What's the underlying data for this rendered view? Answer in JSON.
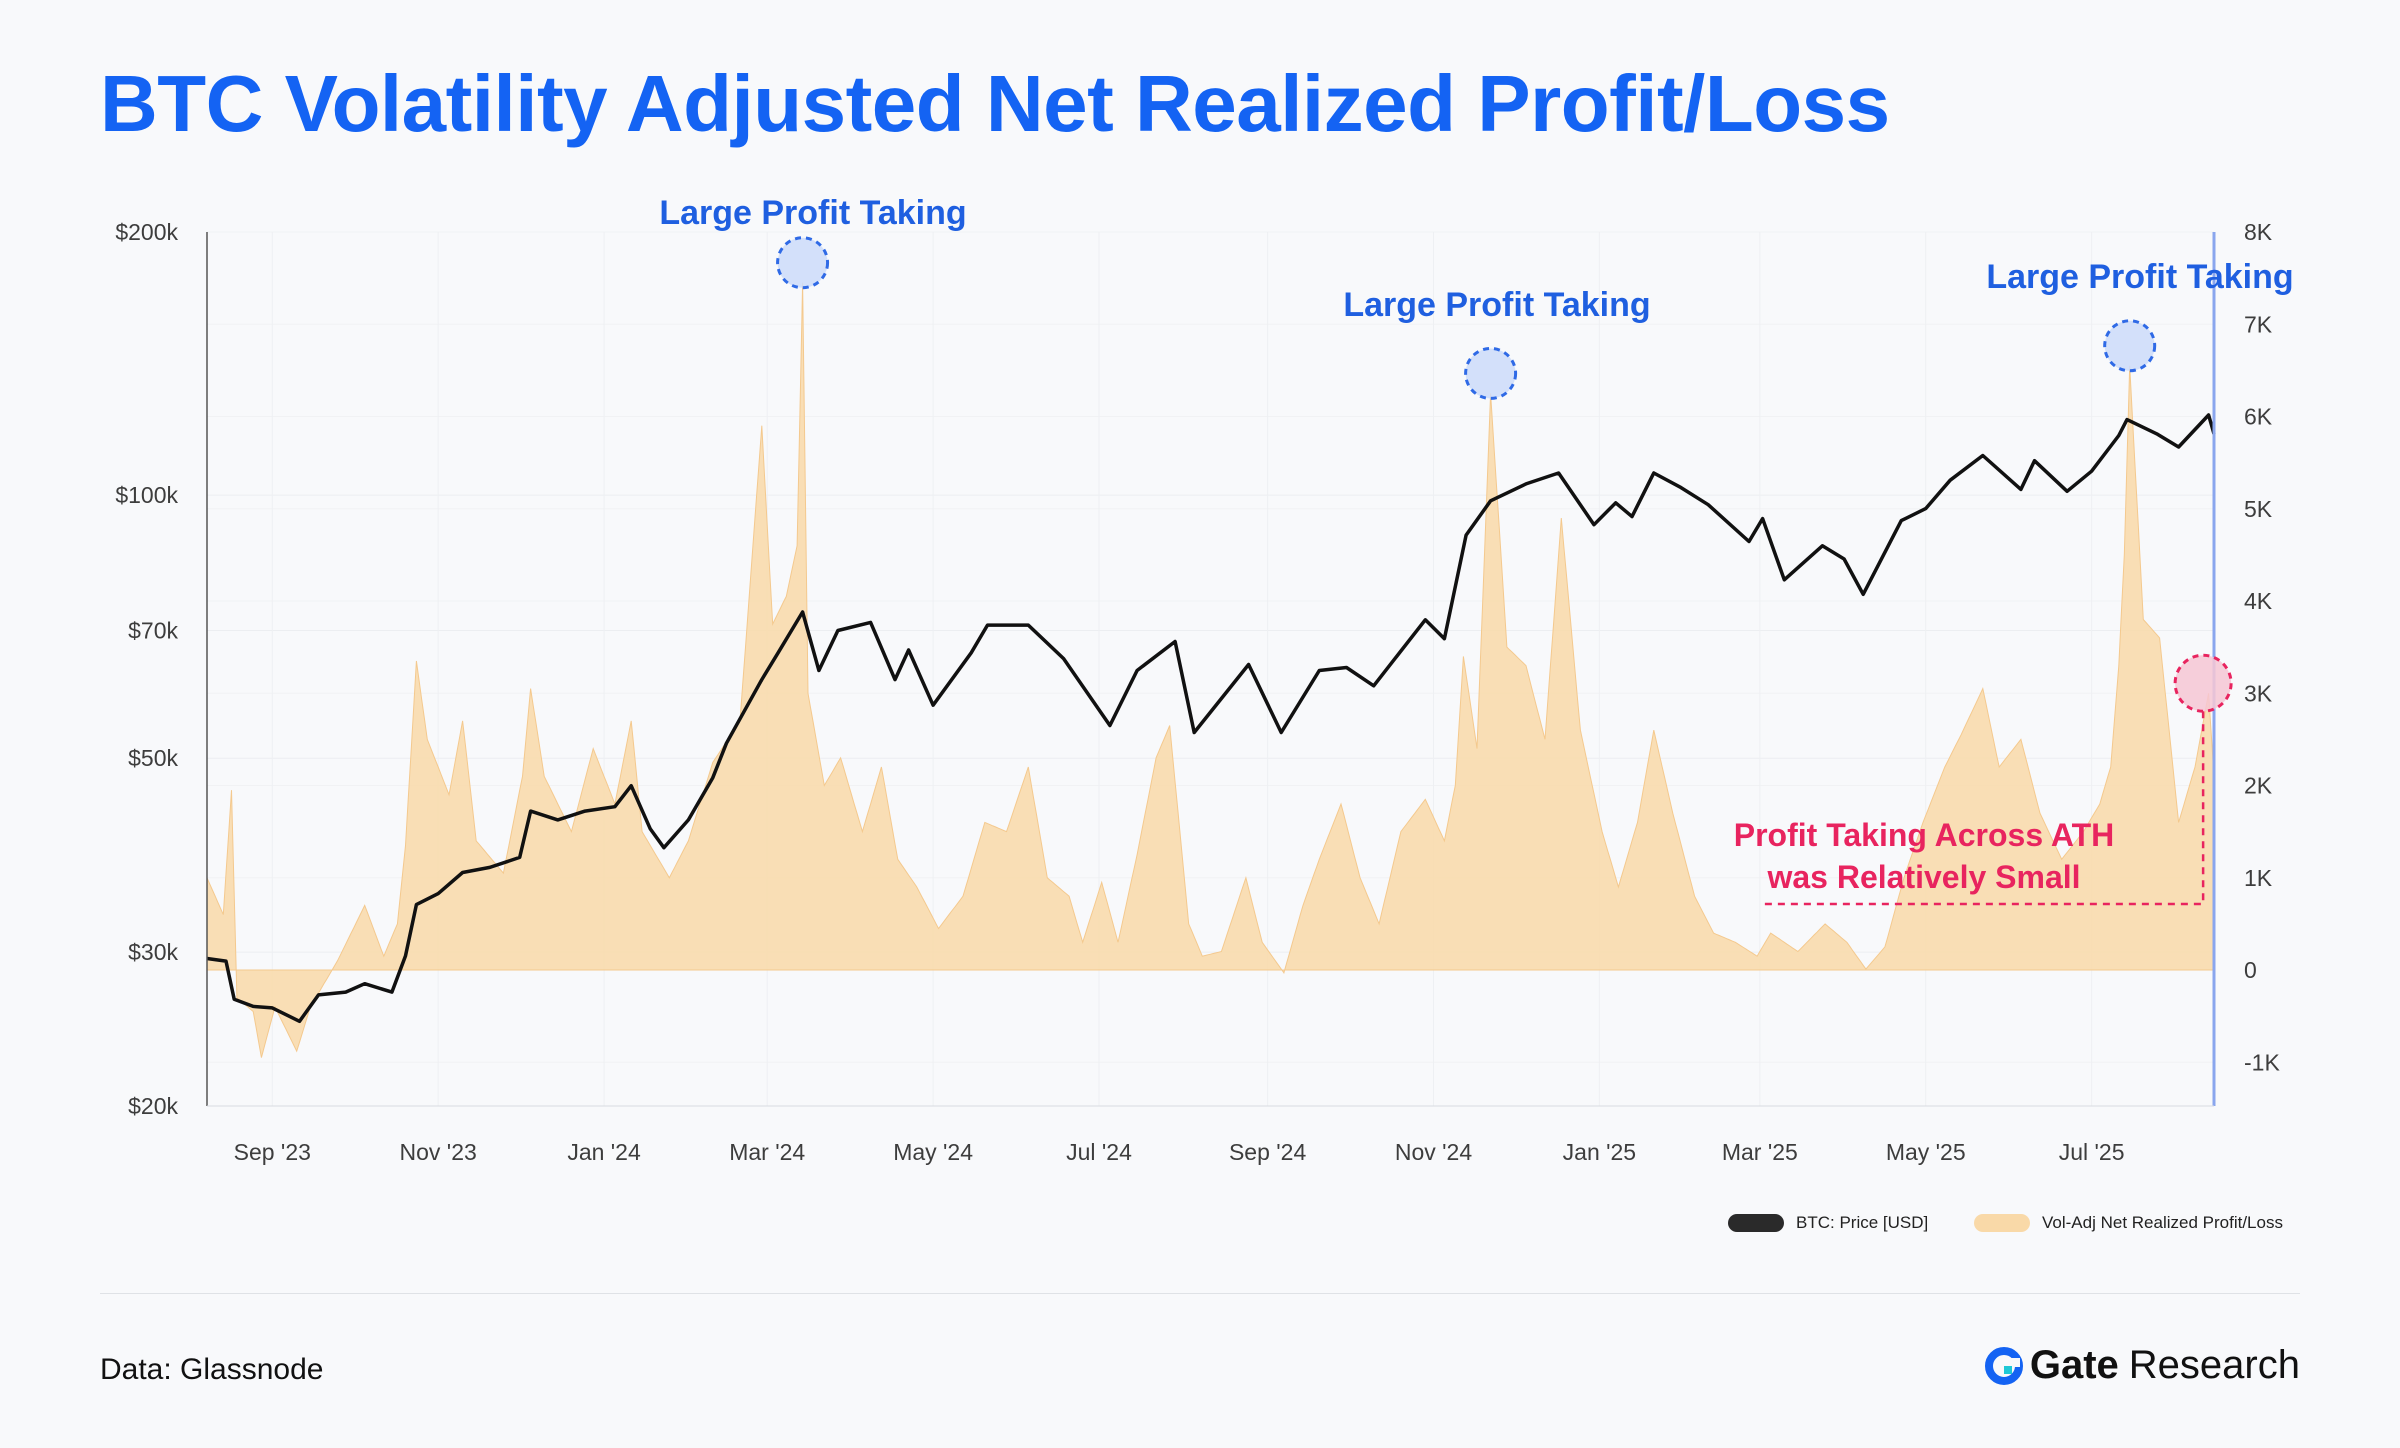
{
  "title": "BTC Volatility Adjusted Net Realized Profit/Loss",
  "source": "Data: Glassnode",
  "brand": {
    "name_bold": "Gate",
    "name_light": "Research"
  },
  "colors": {
    "title": "#1463f3",
    "price_line": "#111111",
    "pnl_fill": "#f9d9a8",
    "annotation_blue": "#1f5fe0",
    "annotation_pink": "#e8245f",
    "right_axis_line": "#8aa6ee"
  },
  "legend": {
    "price_label": "BTC: Price [USD]",
    "pnl_label": "Vol-Adj Net Realized Profit/Loss"
  },
  "annotations": {
    "peak_label": "Large Profit Taking",
    "ath_line1": "Profit Taking Across ATH",
    "ath_line2": "was Relatively Small"
  },
  "chart_data": {
    "type": "line",
    "x_type": "date",
    "xlim": [
      "2023-08-08",
      "2025-08-15"
    ],
    "x_ticks": [
      {
        "date": "2023-09-01",
        "label": "Sep '23"
      },
      {
        "date": "2023-11-01",
        "label": "Nov '23"
      },
      {
        "date": "2024-01-01",
        "label": "Jan '24"
      },
      {
        "date": "2024-03-01",
        "label": "Mar '24"
      },
      {
        "date": "2024-05-01",
        "label": "May '24"
      },
      {
        "date": "2024-07-01",
        "label": "Jul '24"
      },
      {
        "date": "2024-09-01",
        "label": "Sep '24"
      },
      {
        "date": "2024-11-01",
        "label": "Nov '24"
      },
      {
        "date": "2025-01-01",
        "label": "Jan '25"
      },
      {
        "date": "2025-03-01",
        "label": "Mar '25"
      },
      {
        "date": "2025-05-01",
        "label": "May '25"
      },
      {
        "date": "2025-07-01",
        "label": "Jul '25"
      }
    ],
    "y_left": {
      "scale": "log",
      "lim": [
        20000,
        200000
      ],
      "ticks": [
        {
          "value": 200000,
          "label": "$200k"
        },
        {
          "value": 100000,
          "label": "$100k"
        },
        {
          "value": 70000,
          "label": "$70k"
        },
        {
          "value": 50000,
          "label": "$50k"
        },
        {
          "value": 30000,
          "label": "$30k"
        },
        {
          "value": 20000,
          "label": "$20k"
        }
      ]
    },
    "y_right": {
      "scale": "linear",
      "lim": [
        -1500,
        8000
      ],
      "ticks": [
        {
          "value": 8000,
          "label": "8K"
        },
        {
          "value": 7000,
          "label": "7K"
        },
        {
          "value": 6000,
          "label": "6K"
        },
        {
          "value": 5000,
          "label": "5K"
        },
        {
          "value": 4000,
          "label": "4K"
        },
        {
          "value": 3000,
          "label": "3K"
        },
        {
          "value": 2000,
          "label": "2K"
        },
        {
          "value": 1000,
          "label": "1K"
        },
        {
          "value": 0,
          "label": "0"
        },
        {
          "value": -1000,
          "label": "-1K"
        }
      ]
    },
    "series": [
      {
        "name": "BTC: Price [USD]",
        "axis": "left",
        "kind": "line",
        "points": [
          [
            "2023-08-08",
            29500
          ],
          [
            "2023-08-15",
            29300
          ],
          [
            "2023-08-18",
            26500
          ],
          [
            "2023-08-25",
            26000
          ],
          [
            "2023-09-01",
            25900
          ],
          [
            "2023-09-11",
            25000
          ],
          [
            "2023-09-18",
            26800
          ],
          [
            "2023-09-28",
            27000
          ],
          [
            "2023-10-05",
            27600
          ],
          [
            "2023-10-15",
            27000
          ],
          [
            "2023-10-20",
            29700
          ],
          [
            "2023-10-24",
            34000
          ],
          [
            "2023-11-01",
            35000
          ],
          [
            "2023-11-10",
            37000
          ],
          [
            "2023-11-20",
            37500
          ],
          [
            "2023-12-01",
            38500
          ],
          [
            "2023-12-05",
            43500
          ],
          [
            "2023-12-15",
            42500
          ],
          [
            "2023-12-25",
            43500
          ],
          [
            "2024-01-05",
            44000
          ],
          [
            "2024-01-11",
            46500
          ],
          [
            "2024-01-18",
            41500
          ],
          [
            "2024-01-23",
            39500
          ],
          [
            "2024-02-01",
            42500
          ],
          [
            "2024-02-10",
            47500
          ],
          [
            "2024-02-15",
            52000
          ],
          [
            "2024-02-28",
            61500
          ],
          [
            "2024-03-05",
            66000
          ],
          [
            "2024-03-14",
            73500
          ],
          [
            "2024-03-20",
            63000
          ],
          [
            "2024-03-27",
            70000
          ],
          [
            "2024-04-08",
            71500
          ],
          [
            "2024-04-17",
            61500
          ],
          [
            "2024-04-22",
            66500
          ],
          [
            "2024-05-01",
            57500
          ],
          [
            "2024-05-15",
            66000
          ],
          [
            "2024-05-21",
            71000
          ],
          [
            "2024-06-05",
            71000
          ],
          [
            "2024-06-18",
            65000
          ],
          [
            "2024-07-05",
            54500
          ],
          [
            "2024-07-15",
            63000
          ],
          [
            "2024-07-29",
            68000
          ],
          [
            "2024-08-05",
            53500
          ],
          [
            "2024-08-25",
            64000
          ],
          [
            "2024-09-06",
            53500
          ],
          [
            "2024-09-20",
            63000
          ],
          [
            "2024-09-30",
            63500
          ],
          [
            "2024-10-10",
            60500
          ],
          [
            "2024-10-29",
            72000
          ],
          [
            "2024-11-05",
            68500
          ],
          [
            "2024-11-13",
            90000
          ],
          [
            "2024-11-22",
            98500
          ],
          [
            "2024-12-05",
            103000
          ],
          [
            "2024-12-17",
            106000
          ],
          [
            "2024-12-30",
            92500
          ],
          [
            "2025-01-07",
            98000
          ],
          [
            "2025-01-13",
            94500
          ],
          [
            "2025-01-21",
            106000
          ],
          [
            "2025-01-31",
            102000
          ],
          [
            "2025-02-10",
            97500
          ],
          [
            "2025-02-25",
            88500
          ],
          [
            "2025-03-02",
            94000
          ],
          [
            "2025-03-10",
            80000
          ],
          [
            "2025-03-24",
            87500
          ],
          [
            "2025-04-01",
            84500
          ],
          [
            "2025-04-08",
            77000
          ],
          [
            "2025-04-22",
            93500
          ],
          [
            "2025-05-01",
            96500
          ],
          [
            "2025-05-10",
            104000
          ],
          [
            "2025-05-22",
            111000
          ],
          [
            "2025-06-05",
            101500
          ],
          [
            "2025-06-10",
            109500
          ],
          [
            "2025-06-22",
            101000
          ],
          [
            "2025-07-01",
            106500
          ],
          [
            "2025-07-11",
            117000
          ],
          [
            "2025-07-14",
            122000
          ],
          [
            "2025-07-25",
            117500
          ],
          [
            "2025-08-02",
            113500
          ],
          [
            "2025-08-13",
            123500
          ],
          [
            "2025-08-15",
            117500
          ]
        ]
      },
      {
        "name": "Vol-Adj Net Realized Profit/Loss",
        "axis": "right",
        "kind": "area",
        "points": [
          [
            "2023-08-08",
            1000
          ],
          [
            "2023-08-14",
            600
          ],
          [
            "2023-08-17",
            1950
          ],
          [
            "2023-08-19",
            -300
          ],
          [
            "2023-08-25",
            -450
          ],
          [
            "2023-08-28",
            -950
          ],
          [
            "2023-09-02",
            -400
          ],
          [
            "2023-09-10",
            -880
          ],
          [
            "2023-09-15",
            -400
          ],
          [
            "2023-09-25",
            100
          ],
          [
            "2023-10-05",
            700
          ],
          [
            "2023-10-12",
            150
          ],
          [
            "2023-10-17",
            500
          ],
          [
            "2023-10-20",
            1350
          ],
          [
            "2023-10-24",
            3350
          ],
          [
            "2023-10-28",
            2500
          ],
          [
            "2023-11-05",
            1900
          ],
          [
            "2023-11-10",
            2700
          ],
          [
            "2023-11-15",
            1400
          ],
          [
            "2023-11-25",
            1050
          ],
          [
            "2023-12-02",
            2100
          ],
          [
            "2023-12-05",
            3050
          ],
          [
            "2023-12-10",
            2100
          ],
          [
            "2023-12-20",
            1500
          ],
          [
            "2023-12-28",
            2400
          ],
          [
            "2024-01-05",
            1800
          ],
          [
            "2024-01-11",
            2700
          ],
          [
            "2024-01-15",
            1500
          ],
          [
            "2024-01-25",
            1000
          ],
          [
            "2024-02-01",
            1400
          ],
          [
            "2024-02-10",
            2250
          ],
          [
            "2024-02-20",
            2700
          ],
          [
            "2024-02-28",
            5900
          ],
          [
            "2024-03-03",
            3750
          ],
          [
            "2024-03-08",
            4050
          ],
          [
            "2024-03-12",
            4600
          ],
          [
            "2024-03-14",
            7450
          ],
          [
            "2024-03-16",
            3000
          ],
          [
            "2024-03-22",
            2000
          ],
          [
            "2024-03-28",
            2300
          ],
          [
            "2024-04-05",
            1500
          ],
          [
            "2024-04-12",
            2200
          ],
          [
            "2024-04-18",
            1200
          ],
          [
            "2024-04-25",
            900
          ],
          [
            "2024-05-03",
            450
          ],
          [
            "2024-05-12",
            800
          ],
          [
            "2024-05-20",
            1600
          ],
          [
            "2024-05-28",
            1500
          ],
          [
            "2024-06-05",
            2200
          ],
          [
            "2024-06-12",
            1000
          ],
          [
            "2024-06-20",
            800
          ],
          [
            "2024-06-25",
            300
          ],
          [
            "2024-07-02",
            950
          ],
          [
            "2024-07-08",
            300
          ],
          [
            "2024-07-15",
            1250
          ],
          [
            "2024-07-22",
            2300
          ],
          [
            "2024-07-27",
            2650
          ],
          [
            "2024-08-03",
            500
          ],
          [
            "2024-08-08",
            150
          ],
          [
            "2024-08-15",
            200
          ],
          [
            "2024-08-24",
            1000
          ],
          [
            "2024-08-30",
            300
          ],
          [
            "2024-09-07",
            -30
          ],
          [
            "2024-09-14",
            700
          ],
          [
            "2024-09-20",
            1200
          ],
          [
            "2024-09-28",
            1800
          ],
          [
            "2024-10-05",
            1000
          ],
          [
            "2024-10-12",
            500
          ],
          [
            "2024-10-20",
            1500
          ],
          [
            "2024-10-29",
            1850
          ],
          [
            "2024-11-05",
            1400
          ],
          [
            "2024-11-09",
            2000
          ],
          [
            "2024-11-12",
            3400
          ],
          [
            "2024-11-17",
            2400
          ],
          [
            "2024-11-22",
            6250
          ],
          [
            "2024-11-28",
            3500
          ],
          [
            "2024-12-05",
            3300
          ],
          [
            "2024-12-12",
            2500
          ],
          [
            "2024-12-18",
            4900
          ],
          [
            "2024-12-25",
            2600
          ],
          [
            "2025-01-02",
            1500
          ],
          [
            "2025-01-08",
            900
          ],
          [
            "2025-01-15",
            1600
          ],
          [
            "2025-01-21",
            2600
          ],
          [
            "2025-01-28",
            1700
          ],
          [
            "2025-02-05",
            800
          ],
          [
            "2025-02-12",
            400
          ],
          [
            "2025-02-20",
            300
          ],
          [
            "2025-02-28",
            150
          ],
          [
            "2025-03-05",
            400
          ],
          [
            "2025-03-15",
            200
          ],
          [
            "2025-03-25",
            500
          ],
          [
            "2025-04-02",
            300
          ],
          [
            "2025-04-09",
            10
          ],
          [
            "2025-04-16",
            250
          ],
          [
            "2025-04-23",
            1000
          ],
          [
            "2025-04-30",
            1600
          ],
          [
            "2025-05-08",
            2200
          ],
          [
            "2025-05-14",
            2550
          ],
          [
            "2025-05-22",
            3050
          ],
          [
            "2025-05-28",
            2200
          ],
          [
            "2025-06-05",
            2500
          ],
          [
            "2025-06-12",
            1700
          ],
          [
            "2025-06-20",
            1200
          ],
          [
            "2025-06-28",
            1500
          ],
          [
            "2025-07-04",
            1800
          ],
          [
            "2025-07-08",
            2200
          ],
          [
            "2025-07-11",
            3300
          ],
          [
            "2025-07-13",
            4500
          ],
          [
            "2025-07-15",
            6550
          ],
          [
            "2025-07-20",
            3800
          ],
          [
            "2025-07-26",
            3600
          ],
          [
            "2025-08-02",
            1600
          ],
          [
            "2025-08-08",
            2200
          ],
          [
            "2025-08-13",
            3000
          ],
          [
            "2025-08-15",
            2100
          ]
        ]
      }
    ]
  }
}
